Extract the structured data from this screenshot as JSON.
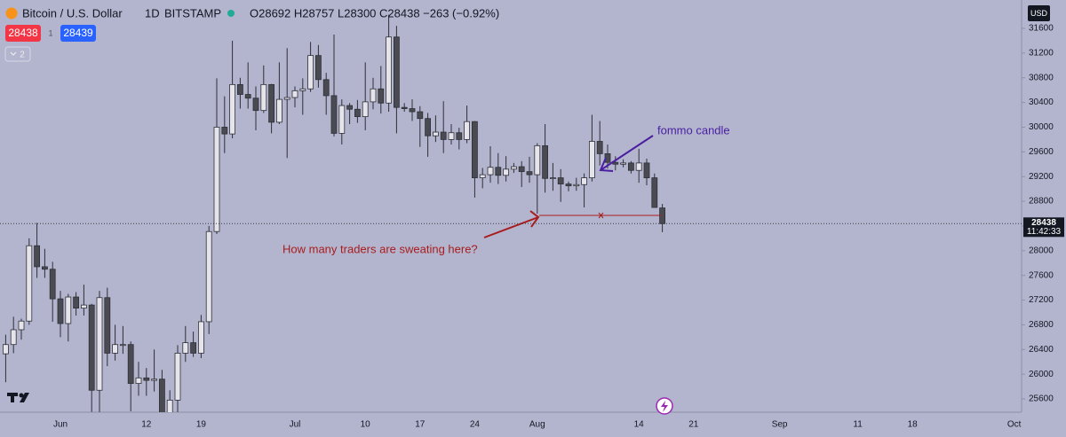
{
  "ui": {
    "symbol": "Bitcoin / U.S. Dollar",
    "interval": "1D",
    "exchange": "BITSTAMP",
    "ohlc_summary": "O28692 H28757 L28300 C28438 −263 (−0.92%)",
    "bid": "28438",
    "spread": "1",
    "ask": "28439",
    "indicator_count": "2",
    "currency": "USD",
    "countdown": "11:42:33"
  },
  "chart_data": {
    "type": "candlestick",
    "annotations": [
      {
        "text": "fommo candle",
        "color": "#4a1fa0"
      },
      {
        "text": "How many traders are sweating here?",
        "color": "#a81c1c"
      }
    ],
    "up_color": "#e4e4ea",
    "down_color": "#4a4a52",
    "wick_color": "#2f2f36",
    "ylim": [
      25385,
      32059
    ],
    "yticks": [
      25600,
      26000,
      26400,
      26800,
      27200,
      27600,
      28000,
      28400,
      28800,
      29200,
      29600,
      30000,
      30400,
      30800,
      31200,
      31600
    ],
    "grid": false,
    "categories": [
      null,
      null,
      null,
      null,
      null,
      null,
      null,
      "Jun",
      null,
      null,
      null,
      null,
      null,
      null,
      null,
      null,
      null,
      null,
      "12",
      null,
      null,
      null,
      null,
      null,
      null,
      "19",
      null,
      null,
      null,
      null,
      null,
      null,
      null,
      null,
      null,
      null,
      null,
      "Jul",
      null,
      null,
      null,
      null,
      null,
      null,
      null,
      null,
      "10",
      null,
      null,
      null,
      null,
      null,
      null,
      "17",
      null,
      null,
      null,
      null,
      null,
      null,
      "24",
      null,
      null,
      null,
      null,
      null,
      null,
      null,
      "Aug",
      null,
      null,
      null,
      null,
      null,
      null,
      null,
      null,
      null,
      null,
      null,
      null,
      "14",
      null,
      null,
      null,
      null,
      null,
      null,
      "21",
      null,
      null,
      null,
      null,
      null,
      null,
      null,
      null,
      null,
      null,
      "Sep",
      null,
      null,
      null,
      null,
      null,
      null,
      null,
      null,
      null,
      "11",
      null,
      null,
      null,
      null,
      null,
      null,
      "18",
      null,
      null,
      null,
      null,
      null,
      null,
      null,
      null,
      null,
      null,
      null,
      null,
      "Oct"
    ],
    "open": [
      26330,
      26480,
      26720,
      26860,
      28080,
      27740,
      27700,
      27220,
      26820,
      27250,
      27070,
      27120,
      25740,
      27240,
      26340,
      26480,
      26480,
      25850,
      25940,
      25900,
      25920,
      25120,
      25580,
      26340,
      26510,
      26340,
      26850,
      28310,
      30000,
      29890,
      30690,
      30530,
      30470,
      30270,
      30690,
      30080,
      30450,
      30480,
      30590,
      30620,
      31160,
      30770,
      30510,
      29900,
      30350,
      30290,
      30170,
      30410,
      30620,
      30390,
      31460,
      30320,
      30300,
      30250,
      30140,
      29860,
      29920,
      29800,
      29910,
      29800,
      30090,
      29180,
      29230,
      29350,
      29220,
      29320,
      29360,
      29280,
      29230,
      29700,
      29170,
      29180,
      29080,
      29050,
      29070,
      29180,
      29770,
      29570,
      29430,
      29400,
      29420,
      29300,
      29420,
      29180,
      28692,
      null,
      null,
      null,
      null,
      null,
      null,
      null,
      null,
      null,
      null,
      null,
      null,
      null,
      null,
      null,
      null,
      null,
      null,
      null,
      null,
      null,
      null,
      null,
      null,
      null,
      null,
      null,
      null,
      null,
      null,
      null,
      null,
      null,
      null,
      null,
      null,
      null,
      null,
      null,
      null,
      null,
      null,
      null,
      null,
      null
    ],
    "high": [
      26640,
      26930,
      26900,
      28200,
      28450,
      28030,
      27820,
      27350,
      27300,
      27330,
      27450,
      27140,
      27350,
      27400,
      26800,
      26780,
      26530,
      26200,
      26100,
      26400,
      26070,
      25740,
      26470,
      26780,
      26690,
      26960,
      28400,
      30790,
      30500,
      31400,
      30800,
      31050,
      30660,
      31000,
      30700,
      31050,
      31280,
      30660,
      30790,
      31380,
      31330,
      30880,
      31500,
      30450,
      30390,
      30440,
      31050,
      30800,
      30990,
      31820,
      31640,
      30390,
      30450,
      30340,
      30230,
      30190,
      30420,
      30050,
      29990,
      30350,
      30100,
      29340,
      29690,
      29580,
      29530,
      29420,
      29450,
      29520,
      29740,
      30050,
      29420,
      29320,
      29120,
      29180,
      29250,
      30200,
      30100,
      29720,
      29530,
      29480,
      29450,
      29650,
      29490,
      29250,
      28757,
      null,
      null,
      null,
      null,
      null,
      null,
      null,
      null,
      null,
      null,
      null,
      null,
      null,
      null,
      null,
      null,
      null,
      null,
      null,
      null,
      null,
      null,
      null,
      null,
      null,
      null,
      null,
      null,
      null,
      null,
      null,
      null,
      null,
      null,
      null,
      null,
      null,
      null,
      null,
      null,
      null,
      null,
      null,
      null,
      null
    ],
    "low": [
      25870,
      26340,
      26560,
      26800,
      27560,
      27560,
      26850,
      26600,
      26530,
      26950,
      26950,
      25390,
      25380,
      26130,
      26220,
      26330,
      25400,
      25650,
      25650,
      25720,
      24830,
      24780,
      25180,
      26200,
      26280,
      26260,
      26650,
      28270,
      29580,
      29820,
      30300,
      30300,
      29950,
      30230,
      29900,
      30050,
      29500,
      30320,
      30200,
      30570,
      30640,
      30200,
      29850,
      29720,
      30050,
      30070,
      29950,
      30290,
      30220,
      30250,
      29900,
      30250,
      30100,
      29680,
      29520,
      29760,
      29580,
      29720,
      29640,
      29740,
      28860,
      29010,
      29100,
      29080,
      29120,
      29260,
      29030,
      29100,
      28600,
      28940,
      28970,
      28790,
      28960,
      28970,
      28700,
      29120,
      29380,
      29330,
      29300,
      29350,
      29250,
      29100,
      29060,
      28700,
      28300,
      null,
      null,
      null,
      null,
      null,
      null,
      null,
      null,
      null,
      null,
      null,
      null,
      null,
      null,
      null,
      null,
      null,
      null,
      null,
      null,
      null,
      null,
      null,
      null,
      null,
      null,
      null,
      null,
      null,
      null,
      null,
      null,
      null,
      null,
      null,
      null,
      null,
      null,
      null,
      null,
      null,
      null,
      null,
      null,
      null
    ],
    "close": [
      26480,
      26720,
      26860,
      28080,
      27740,
      27700,
      27220,
      26820,
      27250,
      27070,
      27120,
      25740,
      27240,
      26340,
      26480,
      26480,
      25850,
      25940,
      25900,
      25920,
      25120,
      25580,
      26340,
      26510,
      26340,
      26850,
      28310,
      30000,
      29890,
      30690,
      30530,
      30470,
      30270,
      30690,
      30080,
      30450,
      30480,
      30590,
      30620,
      31160,
      30770,
      30510,
      29900,
      30350,
      30290,
      30170,
      30410,
      30620,
      30390,
      31460,
      30320,
      30300,
      30250,
      30140,
      29860,
      29920,
      29800,
      29910,
      29800,
      30090,
      29180,
      29230,
      29350,
      29220,
      29320,
      29360,
      29280,
      29230,
      29700,
      29170,
      29180,
      29080,
      29050,
      29070,
      29180,
      29770,
      29570,
      29430,
      29400,
      29420,
      29300,
      29420,
      29180,
      28700,
      28438,
      null,
      null,
      null,
      null,
      null,
      null,
      null,
      null,
      null,
      null,
      null,
      null,
      null,
      null,
      null,
      null,
      null,
      null,
      null,
      null,
      null,
      null,
      null,
      null,
      null,
      null,
      null,
      null,
      null,
      null,
      null,
      null,
      null,
      null,
      null,
      null,
      null,
      null,
      null,
      null,
      null,
      null,
      null,
      null,
      null
    ]
  }
}
